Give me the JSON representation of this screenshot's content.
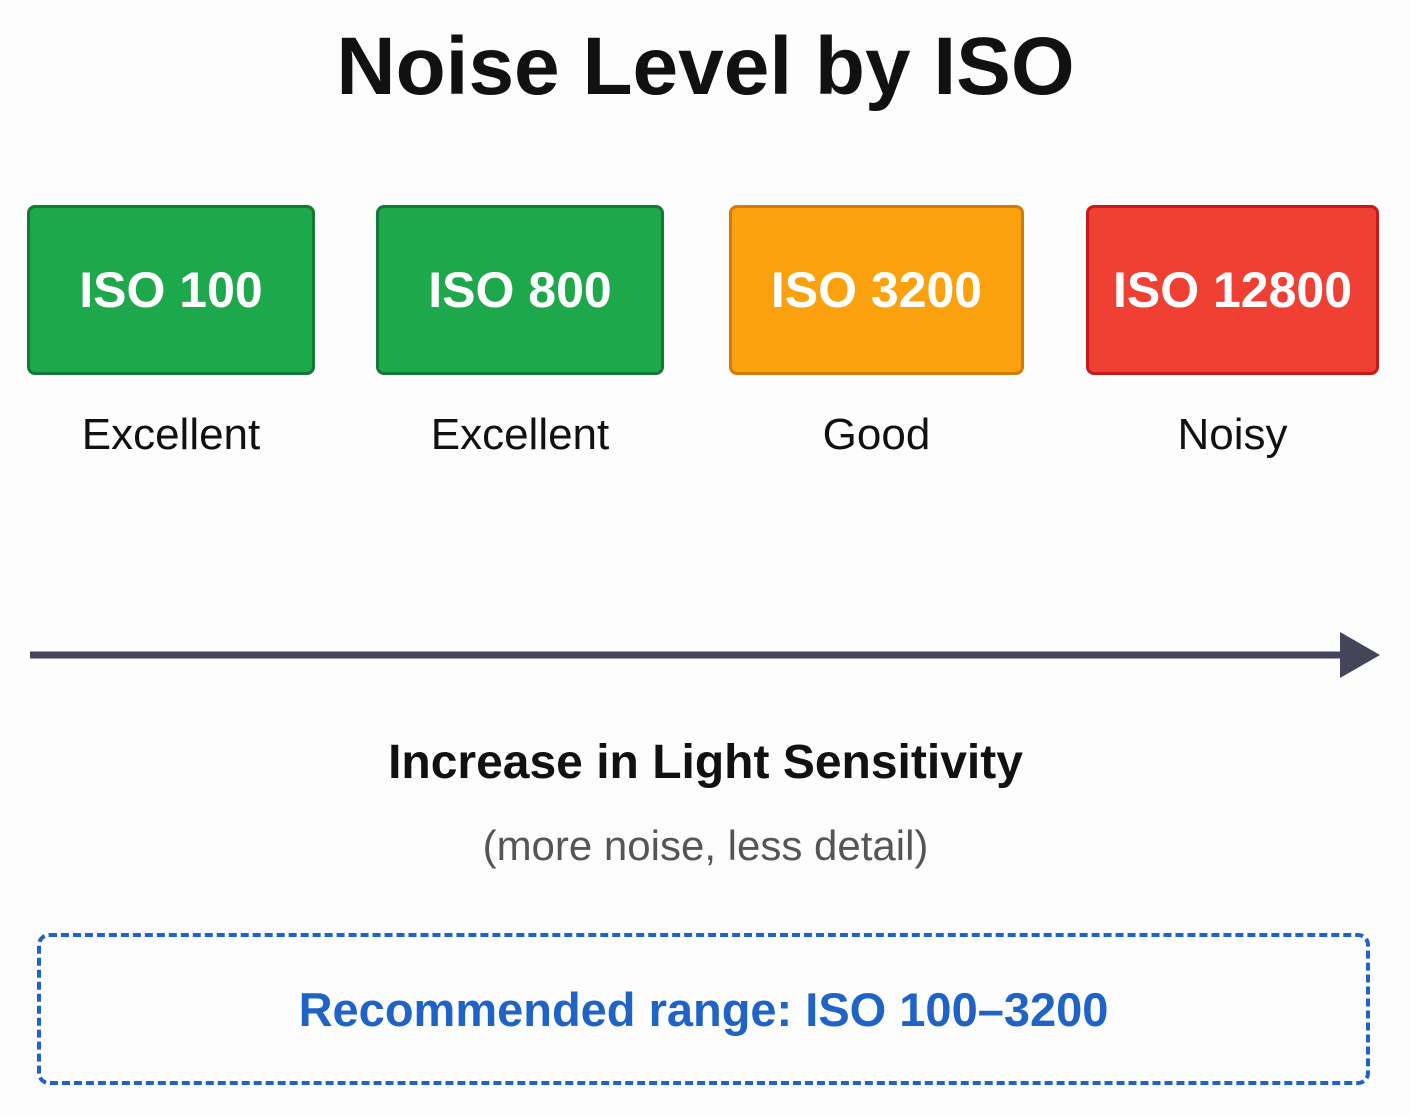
{
  "title": "Noise Level by ISO",
  "items": [
    {
      "label": "ISO 100",
      "rating": "Excellent"
    },
    {
      "label": "ISO 800",
      "rating": "Excellent"
    },
    {
      "label": "ISO 3200",
      "rating": "Good"
    },
    {
      "label": "ISO 12800",
      "rating": "Noisy"
    }
  ],
  "axis": {
    "label": "Increase in Light Sensitivity",
    "note": "(more noise, less detail)"
  },
  "recommendation": "Recommended range: ISO 100–3200"
}
